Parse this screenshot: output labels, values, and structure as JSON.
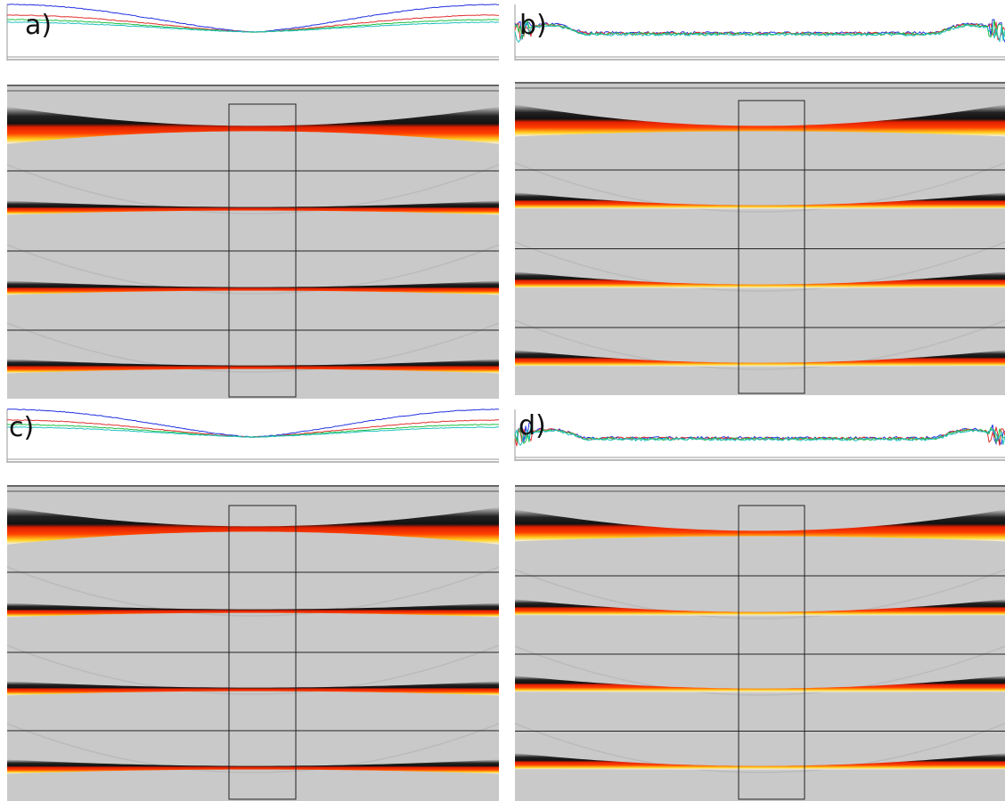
{
  "labels": [
    "a)",
    "b)",
    "c)",
    "d)"
  ]
}
